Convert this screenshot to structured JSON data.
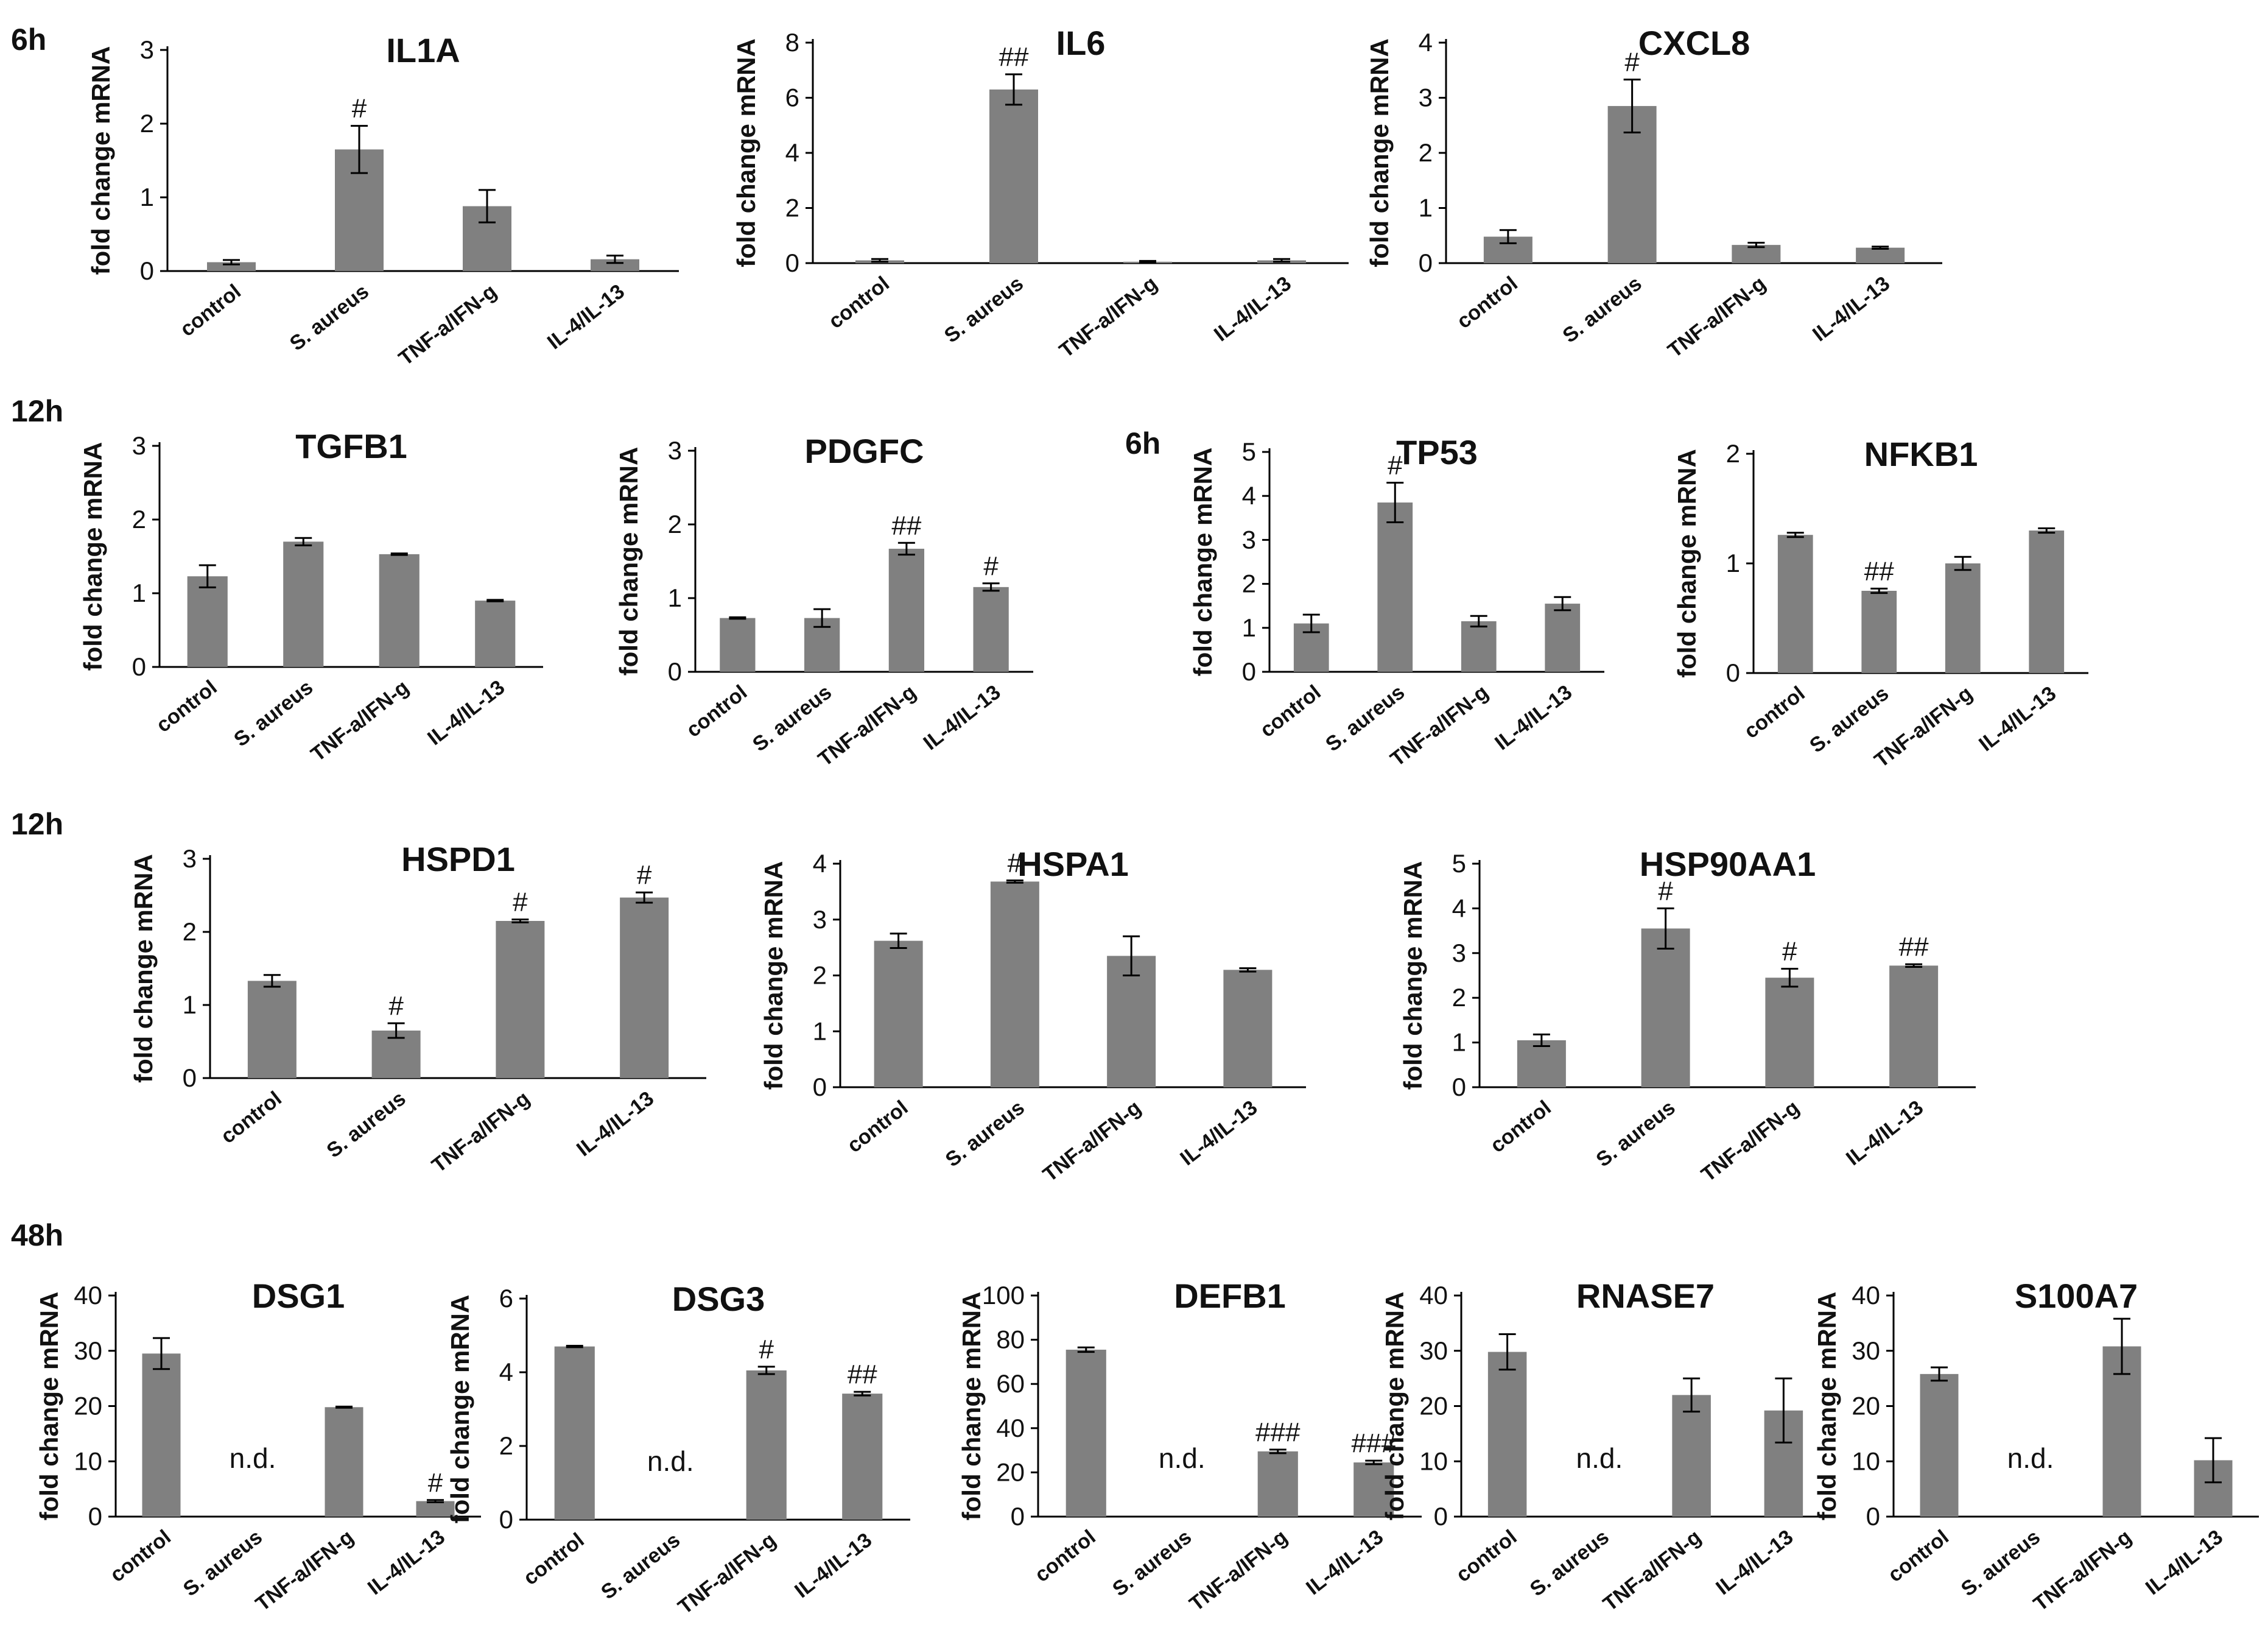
{
  "figure": {
    "time_labels": [
      "6h",
      "12h",
      "6h",
      "12h",
      "48h"
    ],
    "colors": {
      "bar": "#808080",
      "axis": "#000000",
      "text": "#111111"
    }
  },
  "chart_data": [
    {
      "id": "IL1A",
      "type": "bar",
      "title": "IL1A",
      "ylabel": "fold change mRNA",
      "xlabel": "",
      "categories": [
        "control",
        "S. aureus",
        "TNF-a/IFN-g",
        "IL-4/IL-13"
      ],
      "values": [
        0.12,
        1.65,
        0.88,
        0.16
      ],
      "errors": [
        0.03,
        0.32,
        0.22,
        0.05
      ],
      "significance": [
        "",
        "#",
        "",
        ""
      ],
      "ylim": [
        0,
        3
      ],
      "yticks": [
        0,
        1,
        2,
        3
      ]
    },
    {
      "id": "IL6",
      "type": "bar",
      "title": "IL6",
      "ylabel": "fold change mRNA",
      "xlabel": "",
      "categories": [
        "control",
        "S. aureus",
        "TNF-a/IFN-g",
        "IL-4/IL-13"
      ],
      "values": [
        0.1,
        6.3,
        0.05,
        0.1
      ],
      "errors": [
        0.05,
        0.55,
        0.03,
        0.05
      ],
      "significance": [
        "",
        "##",
        "",
        ""
      ],
      "ylim": [
        0,
        8
      ],
      "yticks": [
        0,
        2,
        4,
        6,
        8
      ]
    },
    {
      "id": "CXCL8",
      "type": "bar",
      "title": "CXCL8",
      "ylabel": "fold change mRNA",
      "xlabel": "",
      "categories": [
        "control",
        "S. aureus",
        "TNF-a/IFN-g",
        "IL-4/IL-13"
      ],
      "values": [
        0.48,
        2.85,
        0.33,
        0.28
      ],
      "errors": [
        0.12,
        0.48,
        0.04,
        0.02
      ],
      "significance": [
        "",
        "#",
        "",
        ""
      ],
      "ylim": [
        0,
        4
      ],
      "yticks": [
        0,
        1,
        2,
        3,
        4
      ]
    },
    {
      "id": "TGFB1",
      "type": "bar",
      "title": "TGFB1",
      "ylabel": "fold change mRNA",
      "xlabel": "",
      "categories": [
        "control",
        "S. aureus",
        "TNF-a/IFN-g",
        "IL-4/IL-13"
      ],
      "values": [
        1.23,
        1.7,
        1.53,
        0.9
      ],
      "errors": [
        0.15,
        0.05,
        0.01,
        0.01
      ],
      "significance": [
        "",
        "",
        "",
        ""
      ],
      "ylim": [
        0,
        3
      ],
      "yticks": [
        0,
        1,
        2,
        3
      ]
    },
    {
      "id": "PDGFC",
      "type": "bar",
      "title": "PDGFC",
      "ylabel": "fold change mRNA",
      "xlabel": "",
      "categories": [
        "control",
        "S. aureus",
        "TNF-a/IFN-g",
        "IL-4/IL-13"
      ],
      "values": [
        0.73,
        0.73,
        1.67,
        1.15
      ],
      "errors": [
        0.01,
        0.12,
        0.08,
        0.05
      ],
      "significance": [
        "",
        "",
        "##",
        "#"
      ],
      "ylim": [
        0,
        3
      ],
      "yticks": [
        0,
        1,
        2,
        3
      ]
    },
    {
      "id": "TP53",
      "type": "bar",
      "title": "TP53",
      "ylabel": "fold change mRNA",
      "xlabel": "",
      "categories": [
        "control",
        "S. aureus",
        "TNF-a/IFN-g",
        "IL-4/IL-13"
      ],
      "values": [
        1.1,
        3.85,
        1.15,
        1.55
      ],
      "errors": [
        0.2,
        0.45,
        0.12,
        0.15
      ],
      "significance": [
        "",
        "#",
        "",
        ""
      ],
      "ylim": [
        0,
        5
      ],
      "yticks": [
        0,
        1,
        2,
        3,
        4,
        5
      ]
    },
    {
      "id": "NFKB1",
      "type": "bar",
      "title": "NFKB1",
      "ylabel": "fold change mRNA",
      "xlabel": "",
      "categories": [
        "control",
        "S. aureus",
        "TNF-a/IFN-g",
        "IL-4/IL-13"
      ],
      "values": [
        1.26,
        0.75,
        1.0,
        1.3
      ],
      "errors": [
        0.02,
        0.02,
        0.06,
        0.02
      ],
      "significance": [
        "",
        "##",
        "",
        ""
      ],
      "ylim": [
        0,
        2
      ],
      "yticks": [
        0,
        1,
        2
      ]
    },
    {
      "id": "HSPD1",
      "type": "bar",
      "title": "HSPD1",
      "ylabel": "fold change mRNA",
      "xlabel": "",
      "categories": [
        "control",
        "S. aureus",
        "TNF-a/IFN-g",
        "IL-4/IL-13"
      ],
      "values": [
        1.33,
        0.65,
        2.15,
        2.47
      ],
      "errors": [
        0.08,
        0.1,
        0.02,
        0.07
      ],
      "significance": [
        "",
        "#",
        "#",
        "#"
      ],
      "ylim": [
        0,
        3
      ],
      "yticks": [
        0,
        1,
        2,
        3
      ]
    },
    {
      "id": "HSPA1",
      "type": "bar",
      "title": "HSPA1",
      "ylabel": "fold change mRNA",
      "xlabel": "",
      "categories": [
        "control",
        "S. aureus",
        "TNF-a/IFN-g",
        "IL-4/IL-13"
      ],
      "values": [
        2.62,
        3.68,
        2.35,
        2.1
      ],
      "errors": [
        0.13,
        0.02,
        0.35,
        0.03
      ],
      "significance": [
        "",
        "#",
        "",
        ""
      ],
      "ylim": [
        0,
        4
      ],
      "yticks": [
        0,
        1,
        2,
        3,
        4
      ]
    },
    {
      "id": "HSP90AA1",
      "type": "bar",
      "title": "HSP90AA1",
      "ylabel": "fold change mRNA",
      "xlabel": "",
      "categories": [
        "control",
        "S. aureus",
        "TNF-a/IFN-g",
        "IL-4/IL-13"
      ],
      "values": [
        1.05,
        3.55,
        2.45,
        2.72
      ],
      "errors": [
        0.13,
        0.45,
        0.2,
        0.03
      ],
      "significance": [
        "",
        "#",
        "#",
        "##"
      ],
      "ylim": [
        0,
        5
      ],
      "yticks": [
        0,
        1,
        2,
        3,
        4,
        5
      ]
    },
    {
      "id": "DSG1",
      "type": "bar",
      "title": "DSG1",
      "ylabel": "fold change mRNA",
      "xlabel": "",
      "categories": [
        "control",
        "S. aureus",
        "TNF-a/IFN-g",
        "IL-4/IL-13"
      ],
      "values": [
        29.5,
        null,
        19.8,
        2.8
      ],
      "errors": [
        2.8,
        null,
        0.1,
        0.2
      ],
      "significance": [
        "",
        "n.d.",
        "",
        "#"
      ],
      "ylim": [
        0,
        40
      ],
      "yticks": [
        0,
        10,
        20,
        30,
        40
      ]
    },
    {
      "id": "DSG3",
      "type": "bar",
      "title": "DSG3",
      "ylabel": "fold change mRNA",
      "xlabel": "",
      "categories": [
        "control",
        "S. aureus",
        "TNF-a/IFN-g",
        "IL-4/IL-13"
      ],
      "values": [
        4.7,
        null,
        4.05,
        3.42
      ],
      "errors": [
        0.02,
        null,
        0.1,
        0.05
      ],
      "significance": [
        "",
        "n.d.",
        "#",
        "##"
      ],
      "ylim": [
        0,
        6
      ],
      "yticks": [
        0,
        2,
        4,
        6
      ]
    },
    {
      "id": "DEFB1",
      "type": "bar",
      "title": "DEFB1",
      "ylabel": "fold change mRNA",
      "xlabel": "",
      "categories": [
        "control",
        "S. aureus",
        "TNF-a/IFN-g",
        "IL-4/IL-13"
      ],
      "values": [
        75.5,
        null,
        29.5,
        24.5
      ],
      "errors": [
        1.0,
        null,
        0.8,
        0.8
      ],
      "significance": [
        "",
        "n.d.",
        "###",
        "###"
      ],
      "ylim": [
        0,
        100
      ],
      "yticks": [
        0,
        20,
        40,
        60,
        80,
        100
      ]
    },
    {
      "id": "RNASE7",
      "type": "bar",
      "title": "RNASE7",
      "ylabel": "fold change mRNA",
      "xlabel": "",
      "categories": [
        "control",
        "S. aureus",
        "TNF-a/IFN-g",
        "IL-4/IL-13"
      ],
      "values": [
        29.8,
        null,
        22.0,
        19.2
      ],
      "errors": [
        3.2,
        null,
        3.0,
        5.8
      ],
      "significance": [
        "",
        "n.d.",
        "",
        ""
      ],
      "ylim": [
        0,
        40
      ],
      "yticks": [
        0,
        10,
        20,
        30,
        40
      ]
    },
    {
      "id": "S100A7",
      "type": "bar",
      "title": "S100A7",
      "ylabel": "fold change mRNA",
      "xlabel": "",
      "categories": [
        "control",
        "S. aureus",
        "TNF-a/IFN-g",
        "IL-4/IL-13"
      ],
      "values": [
        25.8,
        null,
        30.8,
        10.2
      ],
      "errors": [
        1.2,
        null,
        5.0,
        4.0
      ],
      "significance": [
        "",
        "n.d.",
        "",
        ""
      ],
      "ylim": [
        0,
        40
      ],
      "yticks": [
        0,
        10,
        20,
        30,
        40
      ]
    }
  ]
}
